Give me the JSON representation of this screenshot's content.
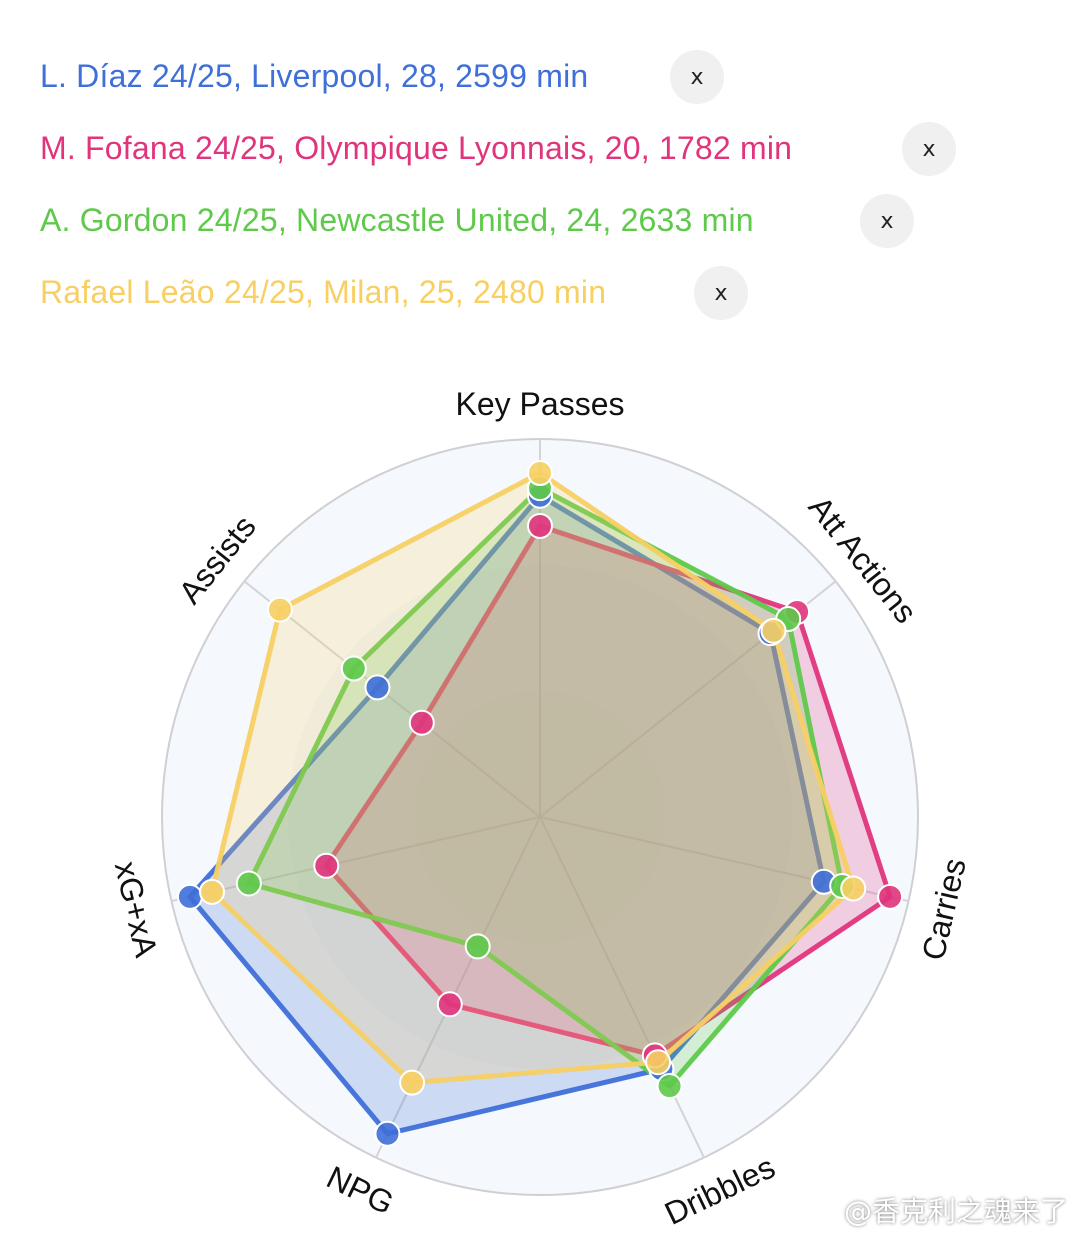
{
  "players": [
    {
      "label": "L. Díaz 24/25, Liverpool, 28, 2599 min",
      "color": "#3f6fd8",
      "remove_label": "x"
    },
    {
      "label": "M. Fofana 24/25, Olympique Lyonnais, 20, 1782 min",
      "color": "#e0347c",
      "remove_label": "x"
    },
    {
      "label": "A. Gordon 24/25, Newcastle United, 24, 2633 min",
      "color": "#5ec94a",
      "remove_label": "x"
    },
    {
      "label": "Rafael Leão 24/25, Milan, 25, 2480 min",
      "color": "#f7cf63",
      "remove_label": "x"
    }
  ],
  "chart_data": {
    "type": "radar",
    "axes": [
      "Key Passes",
      "Att Actions",
      "Carries",
      "Dribbles",
      "NPG",
      "xG+xA",
      "Assists"
    ],
    "range": [
      0,
      100
    ],
    "grid_rings": 3,
    "series": [
      {
        "name": "L. Díaz 24/25, Liverpool, 28, 2599 min",
        "color": "#3f6fd8",
        "values": [
          85,
          78,
          77,
          74,
          93,
          95,
          55
        ]
      },
      {
        "name": "M. Fofana 24/25, Olympique Lyonnais, 20, 1782 min",
        "color": "#e0347c",
        "values": [
          77,
          87,
          95,
          70,
          55,
          58,
          40
        ]
      },
      {
        "name": "A. Gordon 24/25, Newcastle United, 24, 2633 min",
        "color": "#5ec94a",
        "values": [
          87,
          84,
          82,
          79,
          38,
          79,
          63
        ]
      },
      {
        "name": "Rafael Leão 24/25, Milan, 25, 2480 min",
        "color": "#f7cf63",
        "values": [
          91,
          79,
          85,
          72,
          78,
          89,
          88
        ]
      }
    ]
  },
  "watermark": "@香克利之魂来了"
}
